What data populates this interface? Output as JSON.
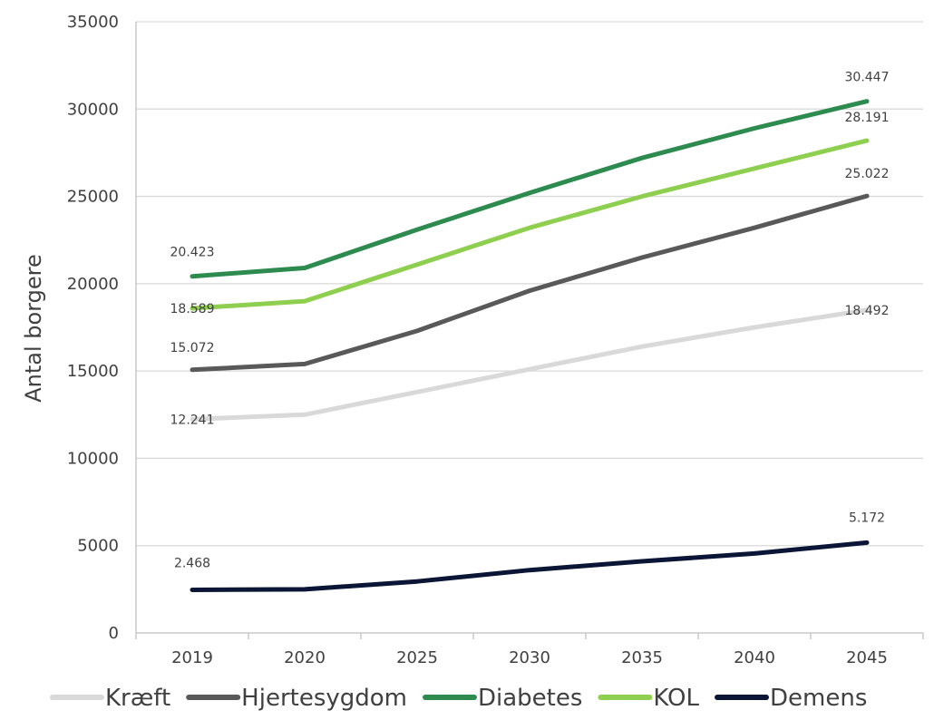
{
  "chart_data": {
    "type": "line",
    "title": "",
    "xlabel": "",
    "ylabel": "Antal borgere",
    "ylim": [
      0,
      35000
    ],
    "yticks": [
      "0",
      "5000",
      "10000",
      "15000",
      "20000",
      "25000",
      "30000",
      "35000"
    ],
    "categories": [
      "2019",
      "2020",
      "2025",
      "2030",
      "2035",
      "2040",
      "2045"
    ],
    "grid": true,
    "legend_position": "bottom",
    "series": [
      {
        "name": "Kræft",
        "color": "#d9d9d9",
        "values": [
          12241,
          12500,
          13800,
          15100,
          16400,
          17500,
          18492
        ],
        "labels": [
          {
            "index": 0,
            "text": "12.241"
          },
          {
            "index": 6,
            "text": "18.492"
          }
        ]
      },
      {
        "name": "Hjertesygdom",
        "color": "#595959",
        "values": [
          15072,
          15400,
          17300,
          19600,
          21500,
          23200,
          25022
        ],
        "labels": [
          {
            "index": 0,
            "text": "15.072"
          },
          {
            "index": 6,
            "text": "25.022"
          }
        ]
      },
      {
        "name": "Diabetes",
        "color": "#2e8b4f",
        "values": [
          20423,
          20900,
          23100,
          25200,
          27200,
          28900,
          30447
        ],
        "labels": [
          {
            "index": 0,
            "text": "20.423"
          },
          {
            "index": 6,
            "text": "30.447"
          }
        ]
      },
      {
        "name": "KOL",
        "color": "#8fcf4f",
        "values": [
          18589,
          19000,
          21100,
          23200,
          25000,
          26600,
          28191
        ],
        "labels": [
          {
            "index": 0,
            "text": "18.589"
          },
          {
            "index": 6,
            "text": "28.191"
          }
        ]
      },
      {
        "name": "Demens",
        "color": "#0b1535",
        "values": [
          2468,
          2500,
          2950,
          3600,
          4100,
          4550,
          5172
        ],
        "labels": [
          {
            "index": 0,
            "text": "2.468"
          },
          {
            "index": 6,
            "text": "5.172"
          }
        ]
      }
    ]
  }
}
